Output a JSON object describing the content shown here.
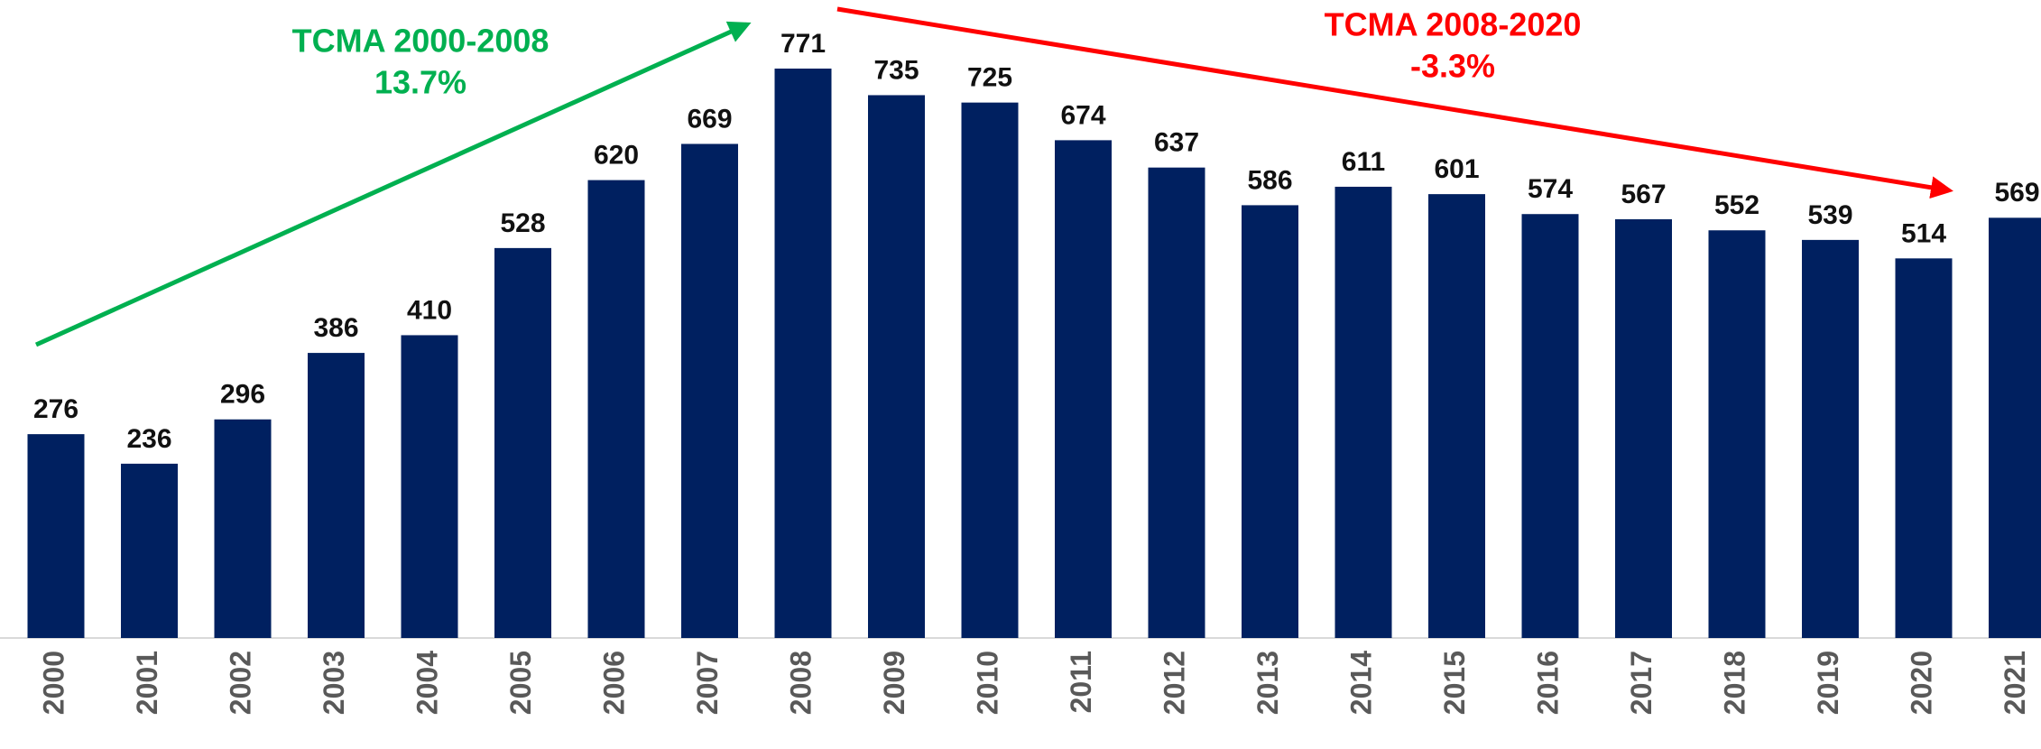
{
  "chart_data": {
    "type": "bar",
    "categories": [
      "2000",
      "2001",
      "2002",
      "2003",
      "2004",
      "2005",
      "2006",
      "2007",
      "2008",
      "2009",
      "2010",
      "2011",
      "2012",
      "2013",
      "2014",
      "2015",
      "2016",
      "2017",
      "2018",
      "2019",
      "2020",
      "2021"
    ],
    "values": [
      276,
      236,
      296,
      386,
      410,
      528,
      620,
      669,
      771,
      735,
      725,
      674,
      637,
      586,
      611,
      601,
      574,
      567,
      552,
      539,
      514,
      569
    ],
    "color": "#002060",
    "annotations": [
      {
        "lines": [
          "TCMA 2000-2008",
          "13.7%"
        ],
        "color": "#00b050"
      },
      {
        "lines": [
          "TCMA 2008-2020",
          "-3.3%"
        ],
        "color": "#ff0000"
      }
    ]
  }
}
